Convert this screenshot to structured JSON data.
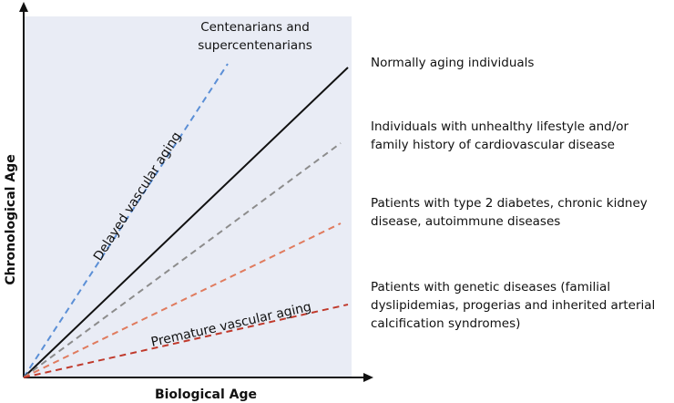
{
  "axes": {
    "x_label": "Biological Age",
    "y_label": "Chronological Age"
  },
  "region_labels": {
    "delayed": "Delayed vascular aging",
    "premature": "Premature vascular aging"
  },
  "groups": {
    "centenarians": "Centenarians and\nsupercentenarians",
    "normal": "Normally aging individuals",
    "unhealthy": "Individuals with unhealthy lifestyle and/or\nfamily history of cardiovascular disease",
    "diabetes": "Patients with type 2 diabetes, chronic kidney\ndisease, autoimmune diseases",
    "genetic": "Patients with genetic diseases (familial\ndyslipidemias, progerias and inherited arterial\ncalcification syndromes)"
  },
  "colors": {
    "background": "#e9ecf5",
    "axis": "#111111",
    "centenarians_line": "#5b8fd6",
    "normal_line": "#111111",
    "unhealthy_line": "#8c8c8c",
    "diabetes_line": "#e07b5e",
    "genetic_line": "#c0392b"
  },
  "line_styles": {
    "centenarians": "dashed",
    "normal": "solid",
    "unhealthy": "dashed",
    "diabetes": "dashed",
    "genetic": "dashed"
  }
}
